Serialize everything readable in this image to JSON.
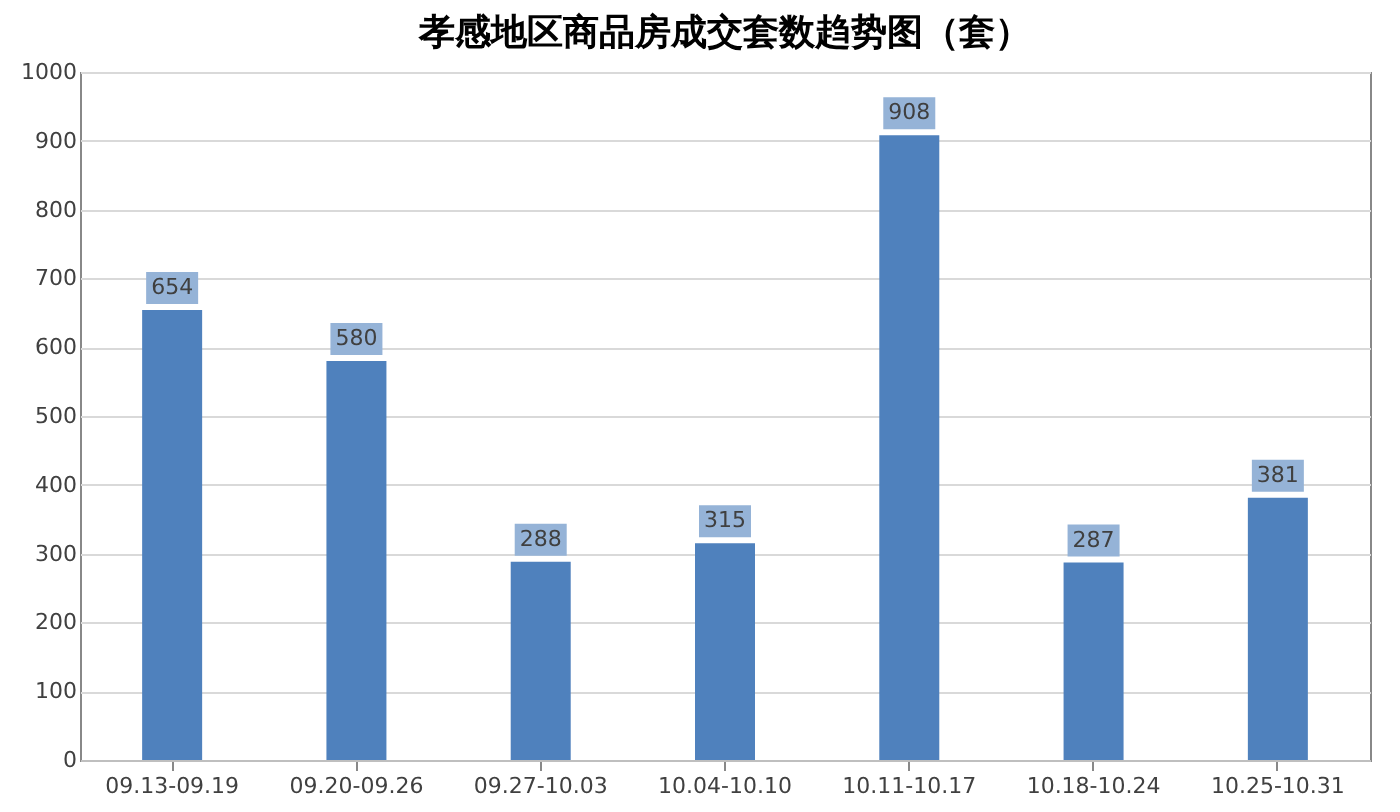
{
  "chart_data": {
    "type": "bar",
    "title": "孝感地区商品房成交套数趋势图（套）",
    "categories": [
      "09.13-09.19",
      "09.20-09.26",
      "09.27-10.03",
      "10.04-10.10",
      "10.11-10.17",
      "10.18-10.24",
      "10.25-10.31"
    ],
    "values": [
      654,
      580,
      288,
      315,
      908,
      287,
      381
    ],
    "color": "#4f81bd",
    "ylim": [
      0,
      1000
    ],
    "yticks": [
      0,
      100,
      200,
      300,
      400,
      500,
      600,
      700,
      800,
      900,
      1000
    ],
    "grid": "y",
    "data_labels": true
  }
}
